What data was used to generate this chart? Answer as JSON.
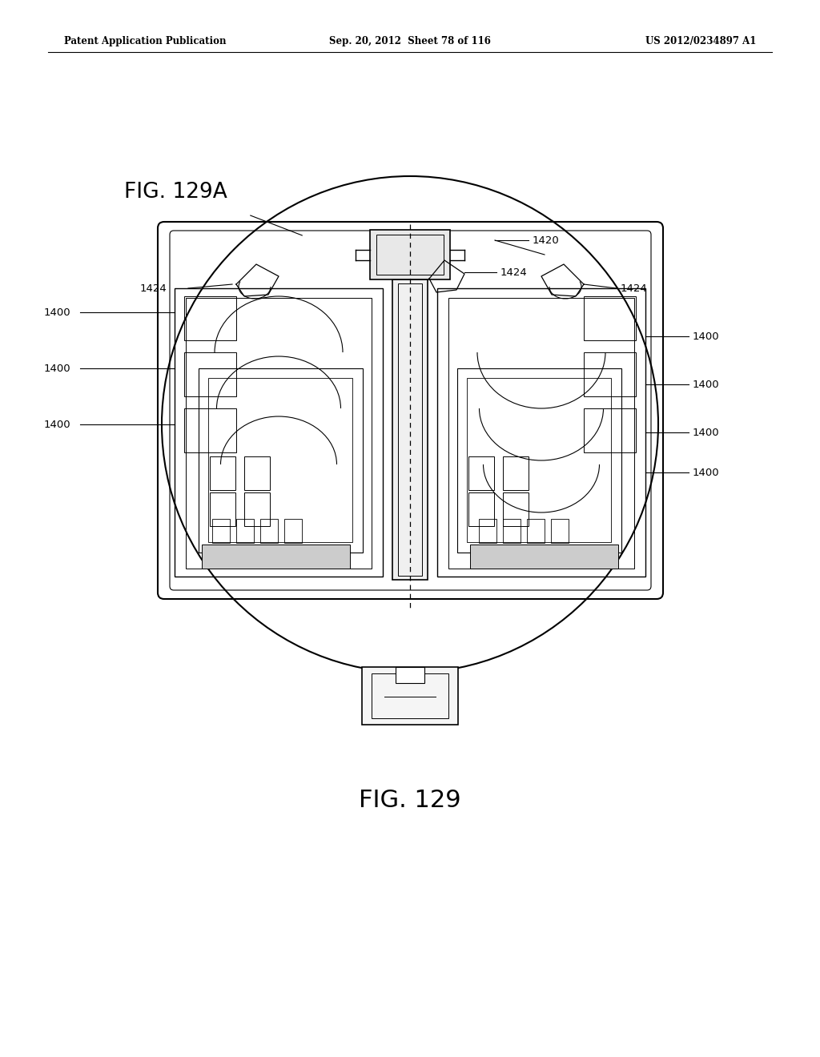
{
  "background_color": "#ffffff",
  "header_left": "Patent Application Publication",
  "header_mid": "Sep. 20, 2012  Sheet 78 of 116",
  "header_right": "US 2012/0234897 A1",
  "fig_label_top": "FIG. 129A",
  "fig_label_bottom": "FIG. 129",
  "line_color": "#000000",
  "page_width": 10.24,
  "page_height": 13.2,
  "dpi": 100
}
